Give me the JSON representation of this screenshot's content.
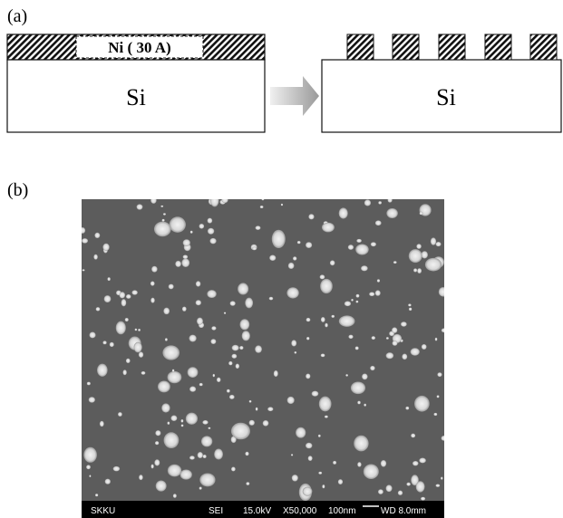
{
  "panel_a": {
    "label": "(a)",
    "ni_layer": "Ni ( 30 A)",
    "substrate_left": "Si",
    "substrate_right": "Si"
  },
  "panel_b": {
    "label": "(b)",
    "sem_bar": {
      "lab": "SKKU",
      "detector": "SEI",
      "voltage": "15.0kV",
      "magnification": "X50,000",
      "scale": "100nm",
      "working_distance": "WD 8.0mm"
    }
  }
}
